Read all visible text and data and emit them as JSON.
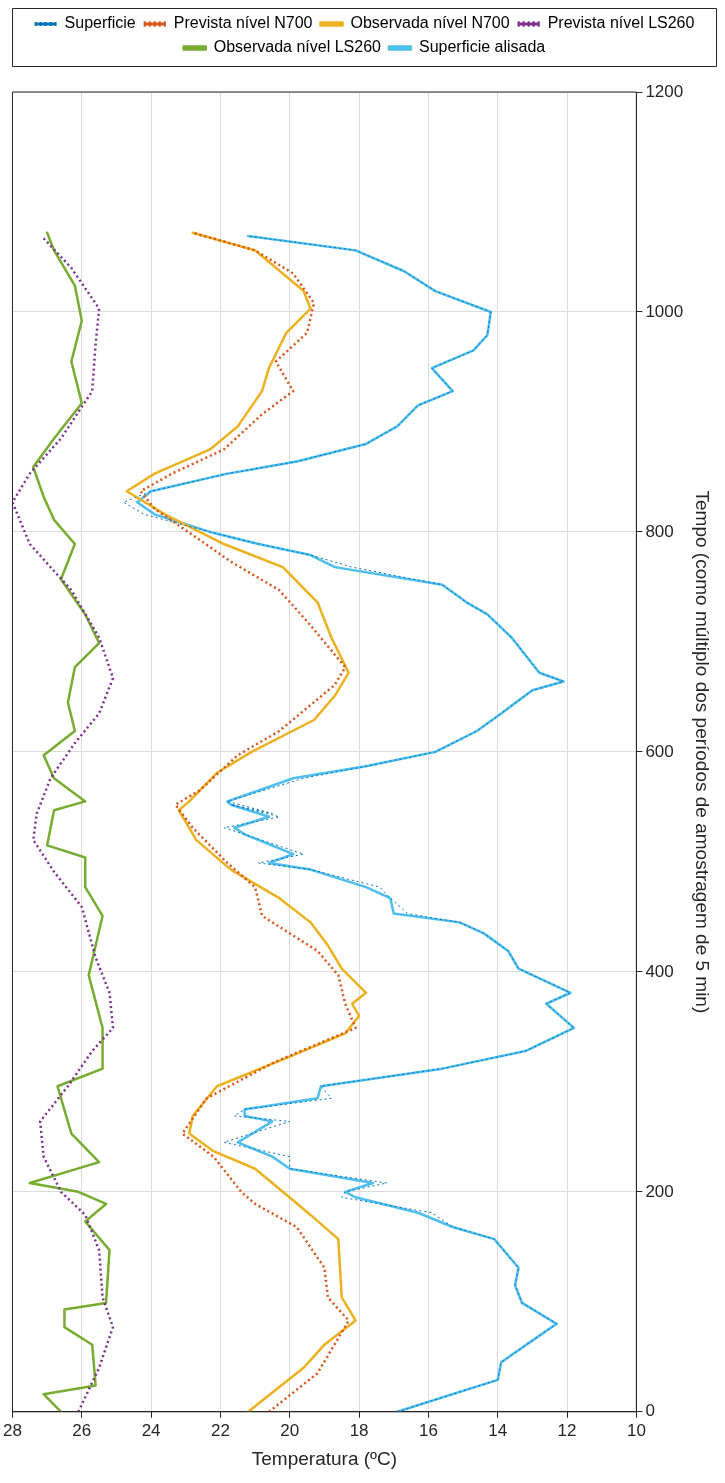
{
  "chart_data": {
    "type": "line",
    "xlabel": "Temperatura (ºC)",
    "ylabel": "Tempo (como múltiplo dos períodos de amostragem de 5 min)",
    "xlim": [
      28,
      10
    ],
    "xticks": [
      28,
      26,
      24,
      22,
      20,
      18,
      16,
      14,
      12,
      10
    ],
    "ylim": [
      0,
      1200
    ],
    "yticks": [
      0,
      200,
      400,
      600,
      800,
      1000,
      1200
    ],
    "grid": true,
    "legend": "top",
    "series": [
      {
        "name": "Superficie",
        "color": "#0072bd",
        "line_style": "dotted",
        "values": [
          0,
          29,
          45,
          67,
          80,
          99,
          115,
          131,
          157,
          168,
          181,
          195,
          200,
          208,
          221,
          232,
          245,
          264,
          269,
          275,
          285,
          296,
          312,
          328,
          349,
          371,
          381,
          403,
          419,
          435,
          445,
          453,
          467,
          477,
          493,
          499,
          507,
          525,
          531,
          541,
          552,
          544,
          555,
          576,
          587,
          600,
          619,
          635,
          656,
          664,
          672,
          704,
          725,
          736,
          752,
          768,
          779,
          789,
          800,
          816,
          827,
          837,
          853,
          864,
          880,
          896,
          915,
          928,
          949,
          965,
          979,
          1000,
          1019,
          1037,
          1056,
          1069
        ],
        "x": [
          16.9,
          14.0,
          13.9,
          12.9,
          12.3,
          13.3,
          13.5,
          13.4,
          14.1,
          15.3,
          15.9,
          18.5,
          18.4,
          17.2,
          20.0,
          20.0,
          21.9,
          20.0,
          21.6,
          21.3,
          18.8,
          19.1,
          15.6,
          13.2,
          11.8,
          12.6,
          11.9,
          13.4,
          13.7,
          14.4,
          15.1,
          16.6,
          17.1,
          17.4,
          19.4,
          20.9,
          19.6,
          21.3,
          21.9,
          20.3,
          21.7,
          20.5,
          21.8,
          19.6,
          17.8,
          15.8,
          14.6,
          13.9,
          13.0,
          12.1,
          12.8,
          13.6,
          14.3,
          14.9,
          15.6,
          18.2,
          19.4,
          20.9,
          22.3,
          24.2,
          24.8,
          24.0,
          21.8,
          19.8,
          17.8,
          16.9,
          16.3,
          15.3,
          15.9,
          14.7,
          14.3,
          14.2,
          15.8,
          16.7,
          18.1,
          21.2
        ]
      },
      {
        "name": "Prevista nível N700",
        "color": "#d95319",
        "line_style": "dotted",
        "values": [
          0,
          35,
          83,
          104,
          131,
          168,
          189,
          200,
          232,
          253,
          285,
          317,
          349,
          371,
          397,
          419,
          451,
          477,
          499,
          531,
          552,
          565,
          597,
          619,
          661,
          677,
          715,
          747,
          773,
          795,
          821,
          837,
          853,
          875,
          907,
          928,
          955,
          981,
          1008,
          1035,
          1056,
          1072
        ],
        "x": [
          20.6,
          19.2,
          18.3,
          18.9,
          19.0,
          19.8,
          21.0,
          21.4,
          22.2,
          23.1,
          22.4,
          20.5,
          18.1,
          18.4,
          18.6,
          19.2,
          20.8,
          21.0,
          21.8,
          22.8,
          23.3,
          22.6,
          21.5,
          20.3,
          18.7,
          18.4,
          19.4,
          20.3,
          21.7,
          22.7,
          23.9,
          24.3,
          23.4,
          21.9,
          20.8,
          19.9,
          20.4,
          19.5,
          19.3,
          19.9,
          21.0,
          22.8
        ]
      },
      {
        "name": "Observada nível N700",
        "color": "#edb120",
        "line_style": "solid",
        "values": [
          0,
          40,
          61,
          83,
          104,
          157,
          179,
          200,
          221,
          237,
          253,
          269,
          296,
          323,
          344,
          360,
          371,
          381,
          403,
          424,
          445,
          467,
          493,
          520,
          547,
          555,
          581,
          600,
          629,
          651,
          672,
          704,
          736,
          768,
          789,
          816,
          837,
          853,
          875,
          896,
          928,
          949,
          981,
          1003,
          1019,
          1056,
          1072
        ],
        "x": [
          21.2,
          19.6,
          19.0,
          18.1,
          18.5,
          18.6,
          19.4,
          20.2,
          21.0,
          22.2,
          22.9,
          22.8,
          22.1,
          20.0,
          18.4,
          18.0,
          18.2,
          17.8,
          18.5,
          18.9,
          19.4,
          20.3,
          21.7,
          22.7,
          23.2,
          22.9,
          22.1,
          21.1,
          19.3,
          18.7,
          18.3,
          18.8,
          19.2,
          20.2,
          21.9,
          23.6,
          24.7,
          23.9,
          22.3,
          21.5,
          20.8,
          20.6,
          20.1,
          19.4,
          19.6,
          21.0,
          22.8
        ]
      },
      {
        "name": "Prevista nível LS260",
        "color": "#7e2f8e",
        "line_style": "dotted",
        "values": [
          0,
          40,
          77,
          104,
          147,
          179,
          200,
          232,
          264,
          296,
          328,
          349,
          381,
          413,
          459,
          491,
          520,
          544,
          576,
          608,
          635,
          667,
          704,
          747,
          789,
          827,
          853,
          885,
          928,
          971,
          1003,
          1040,
          1067
        ],
        "x": [
          26.1,
          25.5,
          25.1,
          25.4,
          25.5,
          25.9,
          26.6,
          27.1,
          27.2,
          26.4,
          25.7,
          25.1,
          25.2,
          25.6,
          26.0,
          26.8,
          27.4,
          27.3,
          26.9,
          26.2,
          25.5,
          25.1,
          25.5,
          26.3,
          27.5,
          28.0,
          27.5,
          26.6,
          25.7,
          25.6,
          25.5,
          26.3,
          27.1
        ]
      },
      {
        "name": "Observada nível LS260",
        "color": "#77ac30",
        "line_style": "solid",
        "values": [
          0,
          16,
          24,
          61,
          77,
          93,
          99,
          147,
          173,
          189,
          200,
          208,
          227,
          253,
          296,
          312,
          349,
          397,
          451,
          477,
          504,
          515,
          547,
          555,
          576,
          597,
          619,
          645,
          677,
          699,
          725,
          757,
          789,
          811,
          832,
          859,
          885,
          917,
          955,
          992,
          1024,
          1056,
          1072
        ],
        "x": [
          26.6,
          27.1,
          25.6,
          25.7,
          26.5,
          26.5,
          25.3,
          25.2,
          25.9,
          25.3,
          26.1,
          27.5,
          25.5,
          26.3,
          26.7,
          25.4,
          25.4,
          25.8,
          25.4,
          25.9,
          25.9,
          27.0,
          26.8,
          25.9,
          26.8,
          27.1,
          26.2,
          26.4,
          26.2,
          25.5,
          25.9,
          26.6,
          26.2,
          26.8,
          27.1,
          27.4,
          26.8,
          26.0,
          26.3,
          26.0,
          26.2,
          26.8,
          27.0
        ]
      },
      {
        "name": "Superficie alisada",
        "color": "#4dbeee",
        "line_style": "solid",
        "values": [
          0,
          29,
          45,
          67,
          80,
          99,
          115,
          131,
          157,
          168,
          181,
          195,
          200,
          208,
          221,
          232,
          245,
          264,
          269,
          275,
          285,
          296,
          312,
          328,
          349,
          371,
          381,
          403,
          419,
          435,
          445,
          453,
          467,
          477,
          493,
          499,
          507,
          525,
          531,
          541,
          552,
          555,
          576,
          587,
          600,
          619,
          635,
          656,
          664,
          672,
          704,
          725,
          736,
          752,
          768,
          779,
          789,
          800,
          816,
          827,
          837,
          853,
          864,
          880,
          896,
          915,
          928,
          949,
          965,
          979,
          1000,
          1019,
          1037,
          1056,
          1069
        ],
        "x": [
          16.9,
          14.0,
          13.9,
          12.9,
          12.3,
          13.3,
          13.5,
          13.4,
          14.1,
          15.3,
          16.3,
          18.1,
          18.4,
          17.6,
          20.0,
          20.5,
          21.5,
          20.5,
          21.3,
          21.3,
          19.2,
          19.1,
          15.6,
          13.2,
          11.8,
          12.6,
          11.9,
          13.4,
          13.7,
          14.4,
          15.1,
          17.0,
          17.1,
          17.8,
          19.4,
          20.6,
          19.9,
          21.3,
          21.6,
          20.6,
          21.7,
          21.8,
          19.9,
          17.8,
          15.8,
          14.6,
          13.9,
          13.0,
          12.1,
          12.8,
          13.6,
          14.3,
          14.9,
          15.6,
          18.7,
          19.4,
          20.9,
          22.3,
          23.9,
          24.4,
          24.0,
          21.8,
          19.8,
          17.8,
          16.9,
          16.3,
          15.3,
          15.9,
          14.7,
          14.3,
          14.2,
          15.8,
          16.7,
          18.1,
          21.2
        ]
      }
    ]
  }
}
